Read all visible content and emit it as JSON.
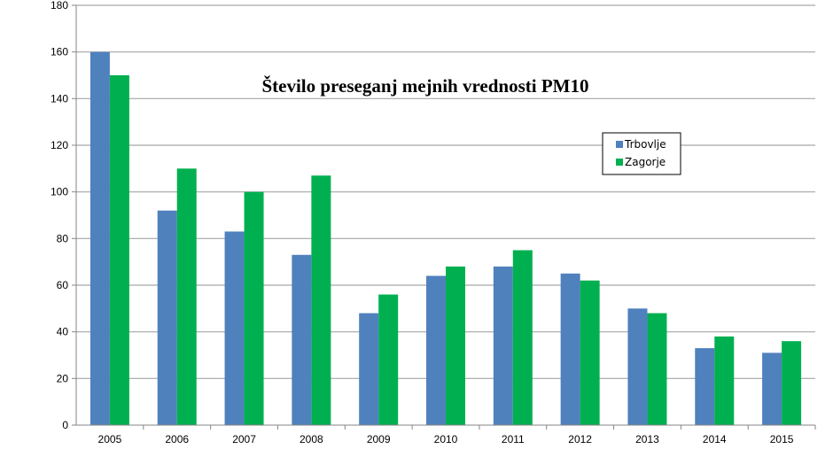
{
  "chart_data": {
    "type": "bar",
    "title": "Število preseganj mejnih vrednosti PM10",
    "xlabel": "",
    "ylabel": "",
    "ylim": [
      0,
      180
    ],
    "yticks": [
      0,
      20,
      40,
      60,
      80,
      100,
      120,
      140,
      160,
      180
    ],
    "grid": true,
    "legend_position": "top-right",
    "categories": [
      "2005",
      "2006",
      "2007",
      "2008",
      "2009",
      "2010",
      "2011",
      "2012",
      "2013",
      "2014",
      "2015"
    ],
    "series": [
      {
        "name": "Trbovlje",
        "color": "#4f81bd",
        "values": [
          160,
          92,
          83,
          73,
          48,
          64,
          68,
          65,
          50,
          33,
          31
        ]
      },
      {
        "name": "Zagorje",
        "color": "#00b050",
        "values": [
          150,
          110,
          100,
          107,
          56,
          68,
          75,
          62,
          48,
          38,
          36
        ]
      }
    ]
  }
}
